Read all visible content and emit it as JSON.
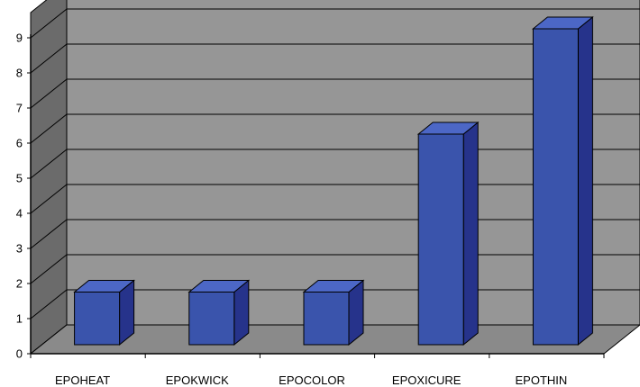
{
  "chart_data": {
    "type": "bar",
    "style": "3d-column",
    "categories": [
      "EPOHEAT",
      "EPOKWICK",
      "EPOCOLOR",
      "EPOXICURE",
      "EPOTHIN"
    ],
    "values": [
      1.5,
      1.5,
      1.5,
      6,
      9
    ],
    "title": "",
    "xlabel": "",
    "ylabel": "",
    "ylim": [
      0,
      9
    ],
    "yticks": [
      "0",
      "1",
      "2",
      "3",
      "4",
      "5",
      "6",
      "7",
      "8",
      "9"
    ],
    "grid": true,
    "legend": "none"
  },
  "colors": {
    "bar_front": "#3a54ac",
    "bar_side": "#26338b",
    "bar_top": "#4c67c6",
    "back_wall": "#969696",
    "side_wall": "#6b6b6b",
    "floor": "#8a8a8a",
    "gridline": "#000000"
  }
}
